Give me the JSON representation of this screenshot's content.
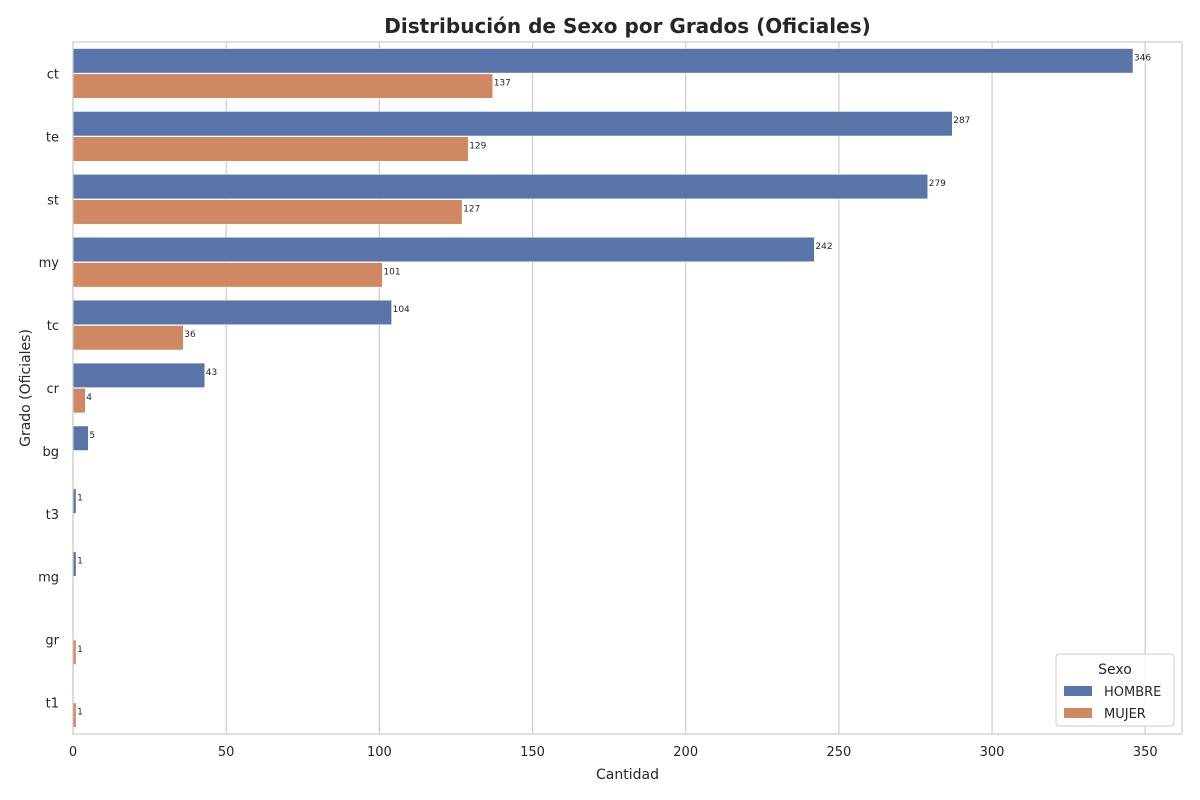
{
  "chart_data": {
    "type": "bar",
    "orientation": "horizontal",
    "title": "Distribución de Sexo por Grados (Oficiales)",
    "xlabel": "Cantidad",
    "ylabel": "Grado (Oficiales)",
    "xlim": [
      0,
      362
    ],
    "xticks": [
      0,
      50,
      100,
      150,
      200,
      250,
      300,
      350
    ],
    "grid": "vertical",
    "categories": [
      "ct",
      "te",
      "st",
      "my",
      "tc",
      "cr",
      "bg",
      "t3",
      "mg",
      "gr",
      "t1"
    ],
    "series": [
      {
        "name": "HOMBRE",
        "color": "#5874a8",
        "values": [
          346,
          287,
          279,
          242,
          104,
          43,
          5,
          1,
          1,
          null,
          null
        ]
      },
      {
        "name": "MUJER",
        "color": "#cf8862",
        "values": [
          137,
          129,
          127,
          101,
          36,
          4,
          null,
          null,
          null,
          1,
          1
        ]
      }
    ],
    "legend": {
      "title": "Sexo",
      "position": "lower-right"
    }
  }
}
